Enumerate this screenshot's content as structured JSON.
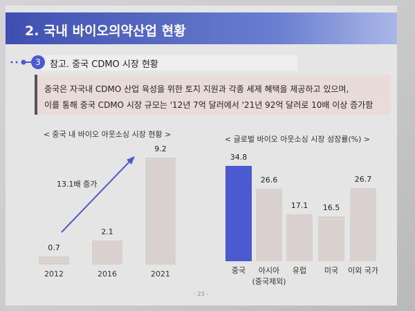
{
  "header": {
    "title": "2. 국내 바이오의약산업 현황",
    "section_number": "3",
    "section_title": "참고. 중국 CDMO 시장 현황",
    "body": [
      "중국은 자국내 CDMO 산업 육성을 위한 토지 지원과 각종 세제 혜택을 제공하고 있으며,",
      "이를 통해 중국 CDMO 시장 규모는 '12년 7억 달러에서 '21년 92억 달러로 10배 이상 증가함"
    ]
  },
  "chart_data": [
    {
      "type": "bar",
      "title": "< 중국 내 바이오 아웃소싱 시장 현황 >",
      "categories": [
        "2012",
        "2016",
        "2021"
      ],
      "values": [
        0.7,
        2.1,
        9.2
      ],
      "color": "#d8d1cf",
      "annotation": "13.1배 증가"
    },
    {
      "type": "bar",
      "title": "< 글로벌 바이오 아웃소싱 시장 성장률(%) >",
      "categories": [
        "중국",
        "아시아\n(중국제외)",
        "유럽",
        "미국",
        "이외 국가"
      ],
      "values": [
        34.8,
        26.6,
        17.1,
        16.5,
        26.7
      ],
      "colors": [
        "#4b5ad0",
        "#d8d1cf",
        "#d8d1cf",
        "#d8d1cf",
        "#d8d1cf"
      ]
    }
  ],
  "page_number": "- 23 -"
}
